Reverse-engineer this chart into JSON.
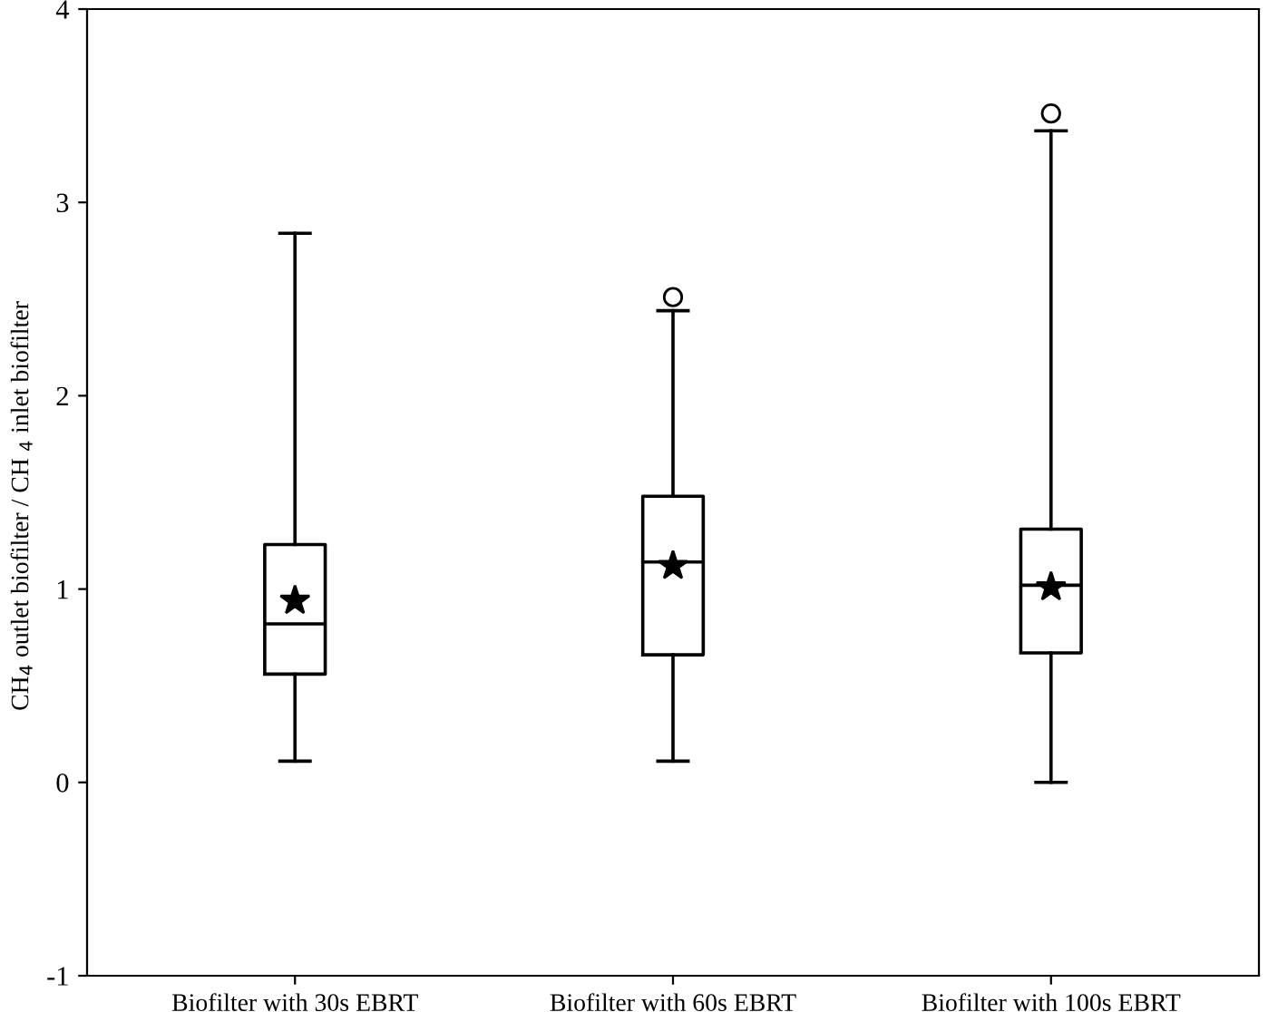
{
  "chart_data": {
    "type": "box",
    "categories": [
      "Biofilter with 30s EBRT",
      "Biofilter with 60s EBRT",
      "Biofilter with 100s EBRT"
    ],
    "ylabel": "CH$_{4}$ outlet biofilter / CH $_{4}$ inlet biofilter",
    "boxes": [
      {
        "low": 0.11,
        "q1": 0.56,
        "median": 0.82,
        "q3": 1.23,
        "high": 2.84,
        "mean": 0.94
      },
      {
        "low": 0.11,
        "q1": 0.66,
        "median": 1.14,
        "q3": 1.48,
        "high": 2.44,
        "mean": 1.12,
        "outliers": [
          2.51
        ]
      },
      {
        "low": 0.0,
        "q1": 0.67,
        "median": 1.02,
        "q3": 1.31,
        "high": 3.37,
        "mean": 1.01,
        "outliers": [
          3.46
        ]
      }
    ],
    "ylim": [
      -1,
      4
    ],
    "yticks": [
      -1,
      0,
      1,
      2,
      3,
      4
    ],
    "grid": false,
    "legend": false
  }
}
